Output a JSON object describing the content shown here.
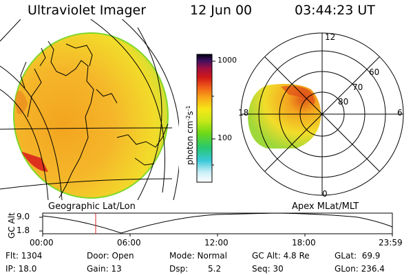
{
  "header": {
    "instrument": "Ultraviolet Imager",
    "date": "12 Jun 00",
    "time": "03:44:23 UT"
  },
  "colorbar": {
    "tick_top": "1000",
    "tick_mid": "100",
    "unit_html": "photon cm<tspan dy='-4' font-size='8'>-2</tspan><tspan dy='4'>s</tspan><tspan dy='-4' font-size='8'>-1</tspan>",
    "unit_plain": "photon cm-2s-1"
  },
  "panels": {
    "left_title": "Geographic Lat/Lon",
    "right_title": "Apex MLat/MLT"
  },
  "polar": {
    "mlt_labels": {
      "top": "12",
      "left": "18",
      "right": "6",
      "bottom": "0"
    },
    "lat_labels": {
      "lat60": "60",
      "lat70": "70",
      "lat80": "80"
    }
  },
  "altitude_plot": {
    "ylabel": "GC Alt",
    "ytick_high": "9.0",
    "ytick_low": "1.8",
    "xticks": [
      "00:00",
      "06:00",
      "12:00",
      "18:00",
      "23:59"
    ],
    "marker_time": "03:44"
  },
  "info": {
    "flt": "Flt: 1304",
    "ip": "IP: 18.0",
    "door": "Door: Open",
    "gain": "Gain: 13",
    "mode": "Mode: Normal",
    "dsp_label": "Dsp:",
    "dsp_value": "5.2",
    "gcalt": "GC Alt: 4.8 Re",
    "seq": "Seq: 30",
    "glat": "GLat:  69.9",
    "glon": "GLon: 236.4"
  },
  "colors": {
    "aurora_yellow": "#f2dc2a",
    "aurora_orange": "#f3a41f",
    "aurora_red": "#d81c1c",
    "aurora_green": "#7fd82a",
    "marker_red": "#e02020"
  }
}
